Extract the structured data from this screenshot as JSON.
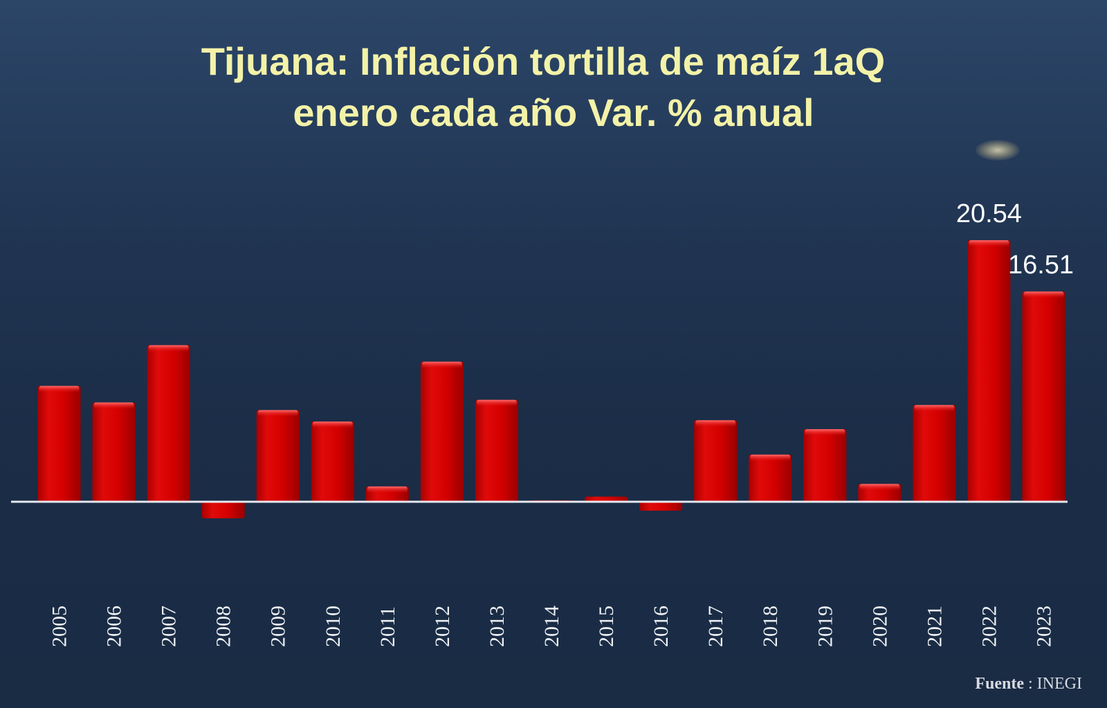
{
  "title_line1": "Tijuana: Inflación tortilla de maíz 1aQ",
  "title_line2": "enero cada año Var. % anual",
  "source_label": "Fuente",
  "source_value": ": INEGI",
  "colors": {
    "bar": "#d40000",
    "baseline": "#e6e8ee",
    "title": "#f3f2a8",
    "label": "#ffffff"
  },
  "chart_data": {
    "type": "bar",
    "title": "Tijuana: Inflación tortilla de maíz 1aQ enero cada año Var. % anual",
    "xlabel": "",
    "ylabel": "",
    "grid": false,
    "legend": "none",
    "categories": [
      "2005",
      "2006",
      "2007",
      "2008",
      "2009",
      "2010",
      "2011",
      "2012",
      "2013",
      "2014",
      "2015",
      "2016",
      "2017",
      "2018",
      "2019",
      "2020",
      "2021",
      "2022",
      "2023"
    ],
    "values": [
      9.1,
      7.8,
      12.3,
      -1.3,
      7.2,
      6.3,
      1.2,
      11.0,
      8.0,
      0.0,
      0.4,
      -0.7,
      6.4,
      3.7,
      5.7,
      1.4,
      7.6,
      20.54,
      16.51
    ],
    "data_labels": [
      "",
      "",
      "",
      "",
      "",
      "",
      "",
      "",
      "",
      "",
      "",
      "",
      "",
      "",
      "",
      "",
      "",
      "20.54",
      "16.51"
    ],
    "ylim": [
      -1.5,
      21.5
    ]
  }
}
